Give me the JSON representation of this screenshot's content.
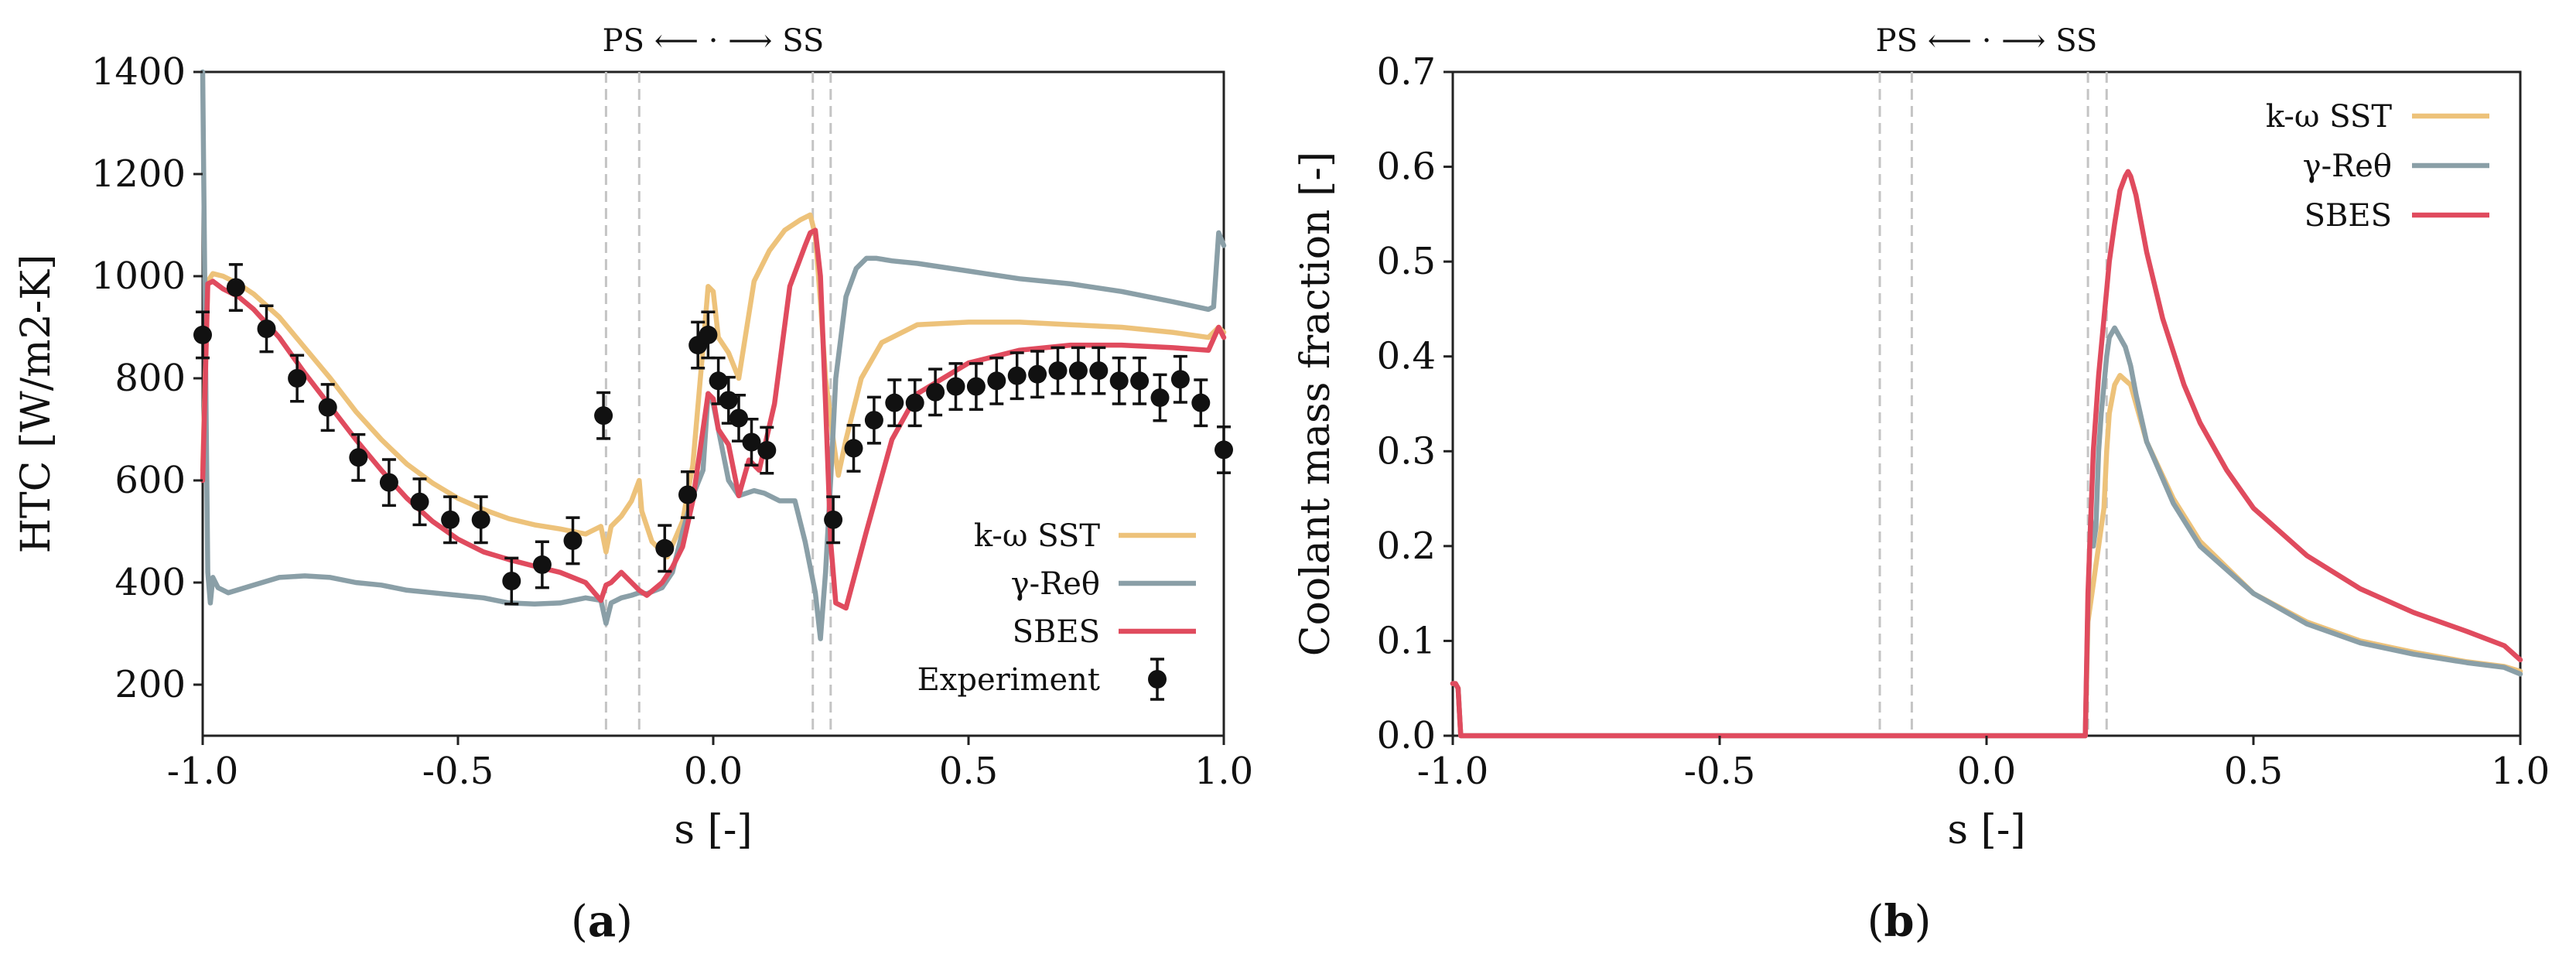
{
  "chart_data": [
    {
      "type": "line",
      "panel": "a",
      "panel_label_open": "(",
      "panel_label_letter": "a",
      "panel_label_close": ")",
      "xlabel": "s [-]",
      "ylabel": "HTC [W/m2-K]",
      "xlim": [
        -1.0,
        1.0
      ],
      "ylim": [
        100,
        1400
      ],
      "xticks": [
        -1.0,
        -0.5,
        0.0,
        0.5,
        1.0
      ],
      "xtick_labels": [
        "-1.0",
        "-0.5",
        "0.0",
        "0.5",
        "1.0"
      ],
      "yticks": [
        200,
        400,
        600,
        800,
        1000,
        1200,
        1400
      ],
      "ytick_labels": [
        "200",
        "400",
        "600",
        "800",
        "1000",
        "1200",
        "1400"
      ],
      "annotation": "PS ⟵ · ⟶ SS",
      "vlines": [
        -0.21,
        -0.145,
        0.195,
        0.23
      ],
      "legend_position": "lower-right",
      "series": [
        {
          "name": "k-ω SST",
          "color": "#EDC27A",
          "x": [
            -1.0,
            -0.99,
            -0.98,
            -0.96,
            -0.93,
            -0.9,
            -0.85,
            -0.8,
            -0.75,
            -0.7,
            -0.65,
            -0.6,
            -0.55,
            -0.5,
            -0.45,
            -0.4,
            -0.35,
            -0.3,
            -0.25,
            -0.22,
            -0.21,
            -0.2,
            -0.18,
            -0.16,
            -0.145,
            -0.14,
            -0.12,
            -0.09,
            -0.06,
            -0.04,
            -0.02,
            -0.01,
            0.0,
            0.01,
            0.03,
            0.05,
            0.08,
            0.11,
            0.14,
            0.17,
            0.19,
            0.2,
            0.21,
            0.22,
            0.235,
            0.245,
            0.26,
            0.29,
            0.33,
            0.4,
            0.5,
            0.6,
            0.7,
            0.8,
            0.9,
            0.97,
            0.99,
            1.0
          ],
          "values": [
            620,
            990,
            1005,
            1000,
            985,
            965,
            920,
            860,
            800,
            735,
            680,
            632,
            595,
            565,
            543,
            525,
            513,
            505,
            495,
            510,
            460,
            510,
            530,
            560,
            600,
            540,
            480,
            450,
            520,
            630,
            860,
            980,
            970,
            880,
            850,
            800,
            990,
            1050,
            1090,
            1110,
            1120,
            1080,
            950,
            800,
            680,
            610,
            680,
            800,
            870,
            905,
            910,
            910,
            905,
            900,
            890,
            880,
            900,
            890
          ]
        },
        {
          "name": "γ-Reθ",
          "color": "#8A9FA7",
          "x": [
            -1.0,
            -0.995,
            -0.99,
            -0.985,
            -0.98,
            -0.97,
            -0.95,
            -0.9,
            -0.85,
            -0.8,
            -0.75,
            -0.7,
            -0.65,
            -0.6,
            -0.55,
            -0.5,
            -0.45,
            -0.4,
            -0.35,
            -0.3,
            -0.25,
            -0.22,
            -0.21,
            -0.2,
            -0.18,
            -0.16,
            -0.145,
            -0.13,
            -0.1,
            -0.08,
            -0.06,
            -0.04,
            -0.02,
            -0.01,
            0.0,
            0.01,
            0.03,
            0.05,
            0.08,
            0.1,
            0.13,
            0.16,
            0.18,
            0.2,
            0.21,
            0.22,
            0.23,
            0.24,
            0.26,
            0.28,
            0.3,
            0.32,
            0.35,
            0.4,
            0.5,
            0.6,
            0.7,
            0.8,
            0.9,
            0.97,
            0.98,
            0.99,
            1.0
          ],
          "values": [
            1400,
            900,
            420,
            360,
            410,
            390,
            380,
            395,
            410,
            413,
            410,
            400,
            395,
            385,
            380,
            375,
            370,
            360,
            358,
            360,
            370,
            365,
            320,
            360,
            370,
            375,
            380,
            378,
            390,
            420,
            500,
            570,
            620,
            770,
            750,
            700,
            600,
            570,
            580,
            575,
            560,
            560,
            480,
            380,
            290,
            420,
            600,
            800,
            960,
            1015,
            1035,
            1035,
            1030,
            1025,
            1010,
            995,
            985,
            970,
            950,
            935,
            940,
            1085,
            1060
          ]
        },
        {
          "name": "SBES",
          "color": "#E04B5E",
          "x": [
            -1.0,
            -0.99,
            -0.98,
            -0.96,
            -0.93,
            -0.9,
            -0.85,
            -0.8,
            -0.75,
            -0.7,
            -0.65,
            -0.6,
            -0.55,
            -0.5,
            -0.45,
            -0.4,
            -0.35,
            -0.3,
            -0.25,
            -0.22,
            -0.21,
            -0.2,
            -0.18,
            -0.16,
            -0.145,
            -0.13,
            -0.1,
            -0.08,
            -0.06,
            -0.04,
            -0.02,
            -0.01,
            0.0,
            0.01,
            0.03,
            0.05,
            0.07,
            0.09,
            0.12,
            0.15,
            0.18,
            0.19,
            0.2,
            0.21,
            0.22,
            0.23,
            0.24,
            0.26,
            0.3,
            0.35,
            0.4,
            0.5,
            0.6,
            0.7,
            0.8,
            0.9,
            0.97,
            0.99,
            1.0
          ],
          "values": [
            600,
            985,
            990,
            975,
            960,
            935,
            880,
            810,
            745,
            680,
            620,
            565,
            520,
            485,
            460,
            445,
            432,
            420,
            400,
            365,
            395,
            400,
            420,
            400,
            385,
            375,
            400,
            430,
            470,
            560,
            700,
            770,
            760,
            700,
            670,
            570,
            640,
            620,
            750,
            980,
            1060,
            1085,
            1090,
            1000,
            750,
            480,
            360,
            350,
            500,
            680,
            770,
            830,
            855,
            865,
            865,
            860,
            855,
            900,
            880
          ]
        }
      ],
      "experiment": {
        "name": "Experiment",
        "color": "#111111",
        "x": [
          -1.0,
          -0.935,
          -0.875,
          -0.815,
          -0.755,
          -0.695,
          -0.635,
          -0.575,
          -0.515,
          -0.455,
          -0.395,
          -0.335,
          -0.275,
          -0.215,
          -0.095,
          -0.05,
          -0.03,
          -0.01,
          0.01,
          0.03,
          0.05,
          0.075,
          0.105,
          0.235,
          0.275,
          0.315,
          0.355,
          0.395,
          0.435,
          0.475,
          0.515,
          0.555,
          0.595,
          0.635,
          0.675,
          0.715,
          0.755,
          0.795,
          0.835,
          0.875,
          0.915,
          0.955,
          1.0
        ],
        "values": [
          885,
          978,
          897,
          800,
          743,
          645,
          596,
          558,
          523,
          523,
          403,
          435,
          482,
          727,
          467,
          572,
          865,
          885,
          795,
          757,
          722,
          675,
          659,
          523,
          663,
          718,
          752,
          752,
          773,
          784,
          784,
          795,
          805,
          808,
          815,
          815,
          815,
          795,
          795,
          762,
          798,
          752,
          660
        ],
        "error": 45
      }
    },
    {
      "type": "line",
      "panel": "b",
      "panel_label_open": "(",
      "panel_label_letter": "b",
      "panel_label_close": ")",
      "xlabel": "s [-]",
      "ylabel": "Coolant mass fraction [-]",
      "xlim": [
        -1.0,
        1.0
      ],
      "ylim": [
        0.0,
        0.7
      ],
      "xticks": [
        -1.0,
        -0.5,
        0.0,
        0.5,
        1.0
      ],
      "xtick_labels": [
        "-1.0",
        "-0.5",
        "0.0",
        "0.5",
        "1.0"
      ],
      "yticks": [
        0.0,
        0.1,
        0.2,
        0.3,
        0.4,
        0.5,
        0.6,
        0.7
      ],
      "ytick_labels": [
        "0.0",
        "0.1",
        "0.2",
        "0.3",
        "0.4",
        "0.5",
        "0.6",
        "0.7"
      ],
      "annotation": "PS ⟵ · ⟶ SS",
      "vlines": [
        -0.2,
        -0.14,
        0.19,
        0.225
      ],
      "legend_position": "upper-right",
      "series": [
        {
          "name": "k-ω SST",
          "color": "#EDC27A",
          "x": [
            -1.0,
            -0.995,
            -0.99,
            -0.985,
            0.18,
            0.185,
            0.19,
            0.2,
            0.205,
            0.21,
            0.215,
            0.22,
            0.225,
            0.23,
            0.24,
            0.25,
            0.26,
            0.27,
            0.28,
            0.3,
            0.35,
            0.4,
            0.5,
            0.6,
            0.7,
            0.8,
            0.9,
            0.97,
            1.0
          ],
          "values": [
            0.055,
            0.055,
            0.05,
            0.0,
            0.0,
            0.0,
            0.12,
            0.16,
            0.18,
            0.2,
            0.22,
            0.24,
            0.3,
            0.34,
            0.37,
            0.38,
            0.375,
            0.37,
            0.35,
            0.31,
            0.25,
            0.205,
            0.15,
            0.12,
            0.1,
            0.088,
            0.078,
            0.073,
            0.068
          ]
        },
        {
          "name": "γ-Reθ",
          "color": "#8A9FA7",
          "x": [
            -1.0,
            -0.995,
            -0.99,
            -0.985,
            0.18,
            0.185,
            0.19,
            0.195,
            0.2,
            0.205,
            0.21,
            0.215,
            0.22,
            0.225,
            0.23,
            0.24,
            0.25,
            0.26,
            0.27,
            0.28,
            0.3,
            0.35,
            0.4,
            0.5,
            0.6,
            0.7,
            0.8,
            0.9,
            0.97,
            1.0
          ],
          "values": [
            0.055,
            0.055,
            0.05,
            0.0,
            0.0,
            0.0,
            0.14,
            0.23,
            0.2,
            0.22,
            0.3,
            0.34,
            0.37,
            0.4,
            0.42,
            0.43,
            0.42,
            0.41,
            0.39,
            0.36,
            0.31,
            0.245,
            0.2,
            0.15,
            0.118,
            0.098,
            0.086,
            0.077,
            0.072,
            0.065
          ]
        },
        {
          "name": "SBES",
          "color": "#E04B5E",
          "x": [
            -1.0,
            -0.995,
            -0.99,
            -0.985,
            0.18,
            0.185,
            0.19,
            0.2,
            0.21,
            0.22,
            0.225,
            0.23,
            0.24,
            0.25,
            0.26,
            0.265,
            0.27,
            0.28,
            0.3,
            0.33,
            0.37,
            0.4,
            0.45,
            0.5,
            0.6,
            0.7,
            0.8,
            0.9,
            0.97,
            1.0
          ],
          "values": [
            0.055,
            0.055,
            0.05,
            0.0,
            0.0,
            0.0,
            0.15,
            0.3,
            0.38,
            0.44,
            0.47,
            0.5,
            0.54,
            0.575,
            0.59,
            0.595,
            0.59,
            0.57,
            0.51,
            0.44,
            0.37,
            0.33,
            0.28,
            0.24,
            0.19,
            0.155,
            0.13,
            0.11,
            0.095,
            0.08
          ]
        }
      ]
    }
  ]
}
